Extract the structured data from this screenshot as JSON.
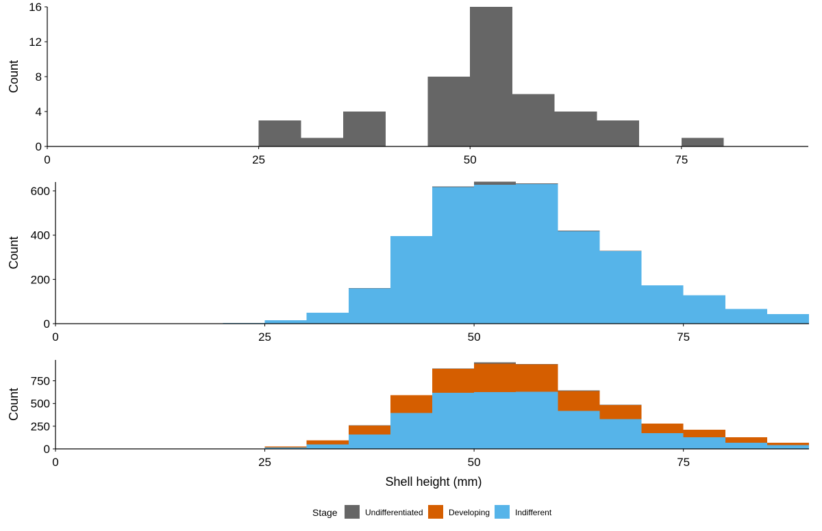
{
  "chart_data": [
    {
      "type": "bar",
      "subtype": "stacked-histogram",
      "bin_width": 5,
      "xlim": [
        0,
        90
      ],
      "ylim": [
        0,
        16
      ],
      "xticks": [
        0,
        25,
        50,
        75
      ],
      "yticks": [
        0,
        4,
        8,
        12,
        16
      ],
      "ylabel": "Count",
      "xlabel": "",
      "bins": [
        25,
        30,
        35,
        45,
        50,
        55,
        60,
        65,
        75
      ],
      "series": [
        {
          "key": "undiff",
          "values": [
            3,
            1,
            4,
            8,
            16,
            6,
            4,
            3,
            1
          ]
        }
      ]
    },
    {
      "type": "bar",
      "subtype": "stacked-histogram",
      "bin_width": 5,
      "xlim": [
        0,
        90
      ],
      "ylim": [
        0,
        640
      ],
      "xticks": [
        0,
        25,
        50,
        75
      ],
      "yticks": [
        0,
        200,
        400,
        600
      ],
      "ylabel": "Count",
      "xlabel": "",
      "bins": [
        20,
        25,
        30,
        35,
        40,
        45,
        50,
        55,
        60,
        65,
        70,
        75,
        80,
        85
      ],
      "series": [
        {
          "key": "indiff",
          "values": [
            3,
            15,
            50,
            160,
            395,
            617,
            627,
            630,
            417,
            327,
            173,
            128,
            67,
            43
          ]
        },
        {
          "key": "undiff",
          "values": [
            0,
            0,
            0,
            1,
            0,
            3,
            14,
            4,
            4,
            2,
            0,
            0,
            0,
            0
          ]
        }
      ]
    },
    {
      "type": "bar",
      "subtype": "stacked-histogram",
      "bin_width": 5,
      "xlim": [
        0,
        90
      ],
      "ylim": [
        0,
        980
      ],
      "xticks": [
        0,
        25,
        50,
        75
      ],
      "yticks": [
        0,
        250,
        500,
        750
      ],
      "ylabel": "Count",
      "xlabel": "Shell height (mm)",
      "bins": [
        20,
        25,
        30,
        35,
        40,
        45,
        50,
        55,
        60,
        65,
        70,
        75,
        80,
        85
      ],
      "series": [
        {
          "key": "indiff",
          "values": [
            3,
            15,
            50,
            160,
            395,
            617,
            627,
            630,
            417,
            327,
            173,
            128,
            67,
            43
          ]
        },
        {
          "key": "dev",
          "values": [
            0,
            12,
            45,
            100,
            195,
            265,
            313,
            302,
            222,
            158,
            105,
            82,
            60,
            25
          ]
        },
        {
          "key": "undiff",
          "values": [
            0,
            0,
            0,
            1,
            0,
            5,
            14,
            3,
            4,
            2,
            0,
            0,
            0,
            0
          ]
        }
      ]
    }
  ],
  "legend": {
    "title": "Stage",
    "items": [
      {
        "key": "undiff",
        "label": "Undifferentiated",
        "color": "#666666"
      },
      {
        "key": "dev",
        "label": "Developing",
        "color": "#D55E00"
      },
      {
        "key": "indiff",
        "label": "Indifferent",
        "color": "#56B4E9"
      }
    ]
  }
}
